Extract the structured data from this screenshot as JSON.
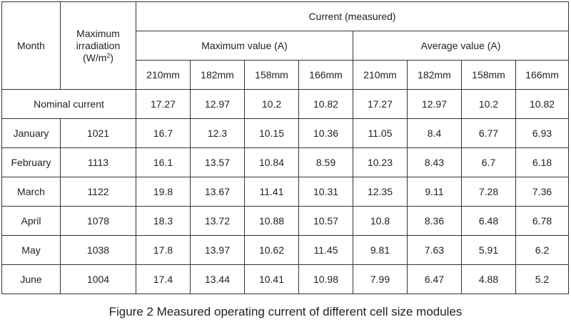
{
  "table": {
    "headers": {
      "month": "Month",
      "irradiation_line1": "Maximum",
      "irradiation_line2": "irradiation",
      "irradiation_unit": "(W/m",
      "irradiation_unit_sup": "2",
      "irradiation_unit_end": ")",
      "current_group": "Current (measured)",
      "max_group": "Maximum value (A)",
      "avg_group": "Average value (A)",
      "sizes": [
        "210mm",
        "182mm",
        "158mm",
        "166mm"
      ]
    },
    "nominal": {
      "label": "Nominal current",
      "values": [
        "17.27",
        "12.97",
        "10.2",
        "10.82",
        "17.27",
        "12.97",
        "10.2",
        "10.82"
      ]
    },
    "rows": [
      {
        "month": "January",
        "irradiation": "1021",
        "values": [
          "16.7",
          "12.3",
          "10.15",
          "10.36",
          "11.05",
          "8.4",
          "6.77",
          "6.93"
        ]
      },
      {
        "month": "February",
        "irradiation": "1113",
        "values": [
          "16.1",
          "13.57",
          "10.84",
          "8.59",
          "10.23",
          "8.43",
          "6.7",
          "6.18"
        ]
      },
      {
        "month": "March",
        "irradiation": "1122",
        "values": [
          "19.8",
          "13.67",
          "11.41",
          "10.31",
          "12.35",
          "9.11",
          "7.28",
          "7.36"
        ]
      },
      {
        "month": "April",
        "irradiation": "1078",
        "values": [
          "18.3",
          "13.72",
          "10.88",
          "10.57",
          "10.8",
          "8.36",
          "6.48",
          "6.78"
        ]
      },
      {
        "month": "May",
        "irradiation": "1038",
        "values": [
          "17.8",
          "13.97",
          "10.62",
          "11.45",
          "9.81",
          "7.63",
          "5.91",
          "6.2"
        ]
      },
      {
        "month": "June",
        "irradiation": "1004",
        "values": [
          "17.4",
          "13.44",
          "10.41",
          "10.98",
          "7.99",
          "6.47",
          "4.88",
          "5.2"
        ]
      }
    ]
  },
  "caption": "Figure 2 Measured operating current of different cell size modules"
}
